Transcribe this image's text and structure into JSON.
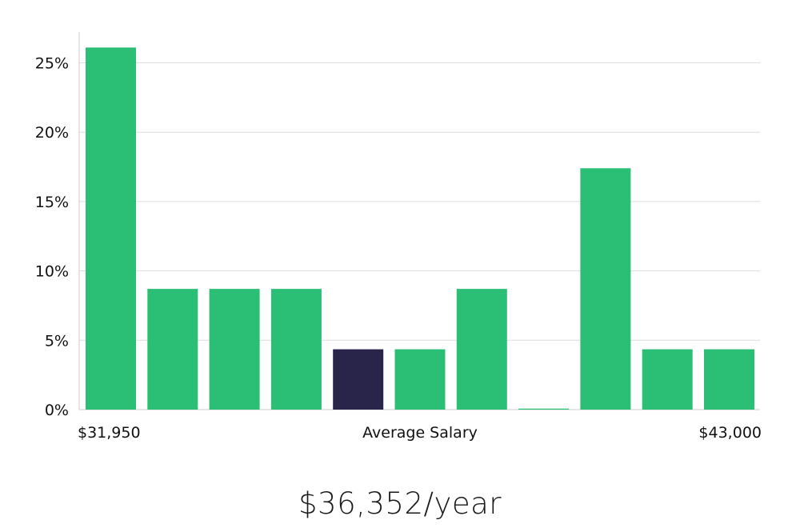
{
  "chart_data": {
    "type": "bar",
    "title": "",
    "xlabel": "",
    "ylabel": "",
    "ylim": [
      0,
      27
    ],
    "yticks": [
      0,
      5,
      10,
      15,
      20,
      25
    ],
    "ytick_labels": [
      "0%",
      "5%",
      "10%",
      "15%",
      "20%",
      "25%"
    ],
    "grid": true,
    "values": [
      26.1,
      8.7,
      8.7,
      8.7,
      4.35,
      4.35,
      8.7,
      0,
      17.4,
      4.35,
      4.35
    ],
    "highlight_index": 4,
    "colors": {
      "bar": "#2bbf76",
      "highlight": "#29244a",
      "grid": "#dddddd",
      "axis": "#cccccc"
    },
    "x_min_label": "$31,950",
    "x_center_label": "Average Salary",
    "x_max_label": "$43,000"
  },
  "salary_label": "$36,352/year"
}
